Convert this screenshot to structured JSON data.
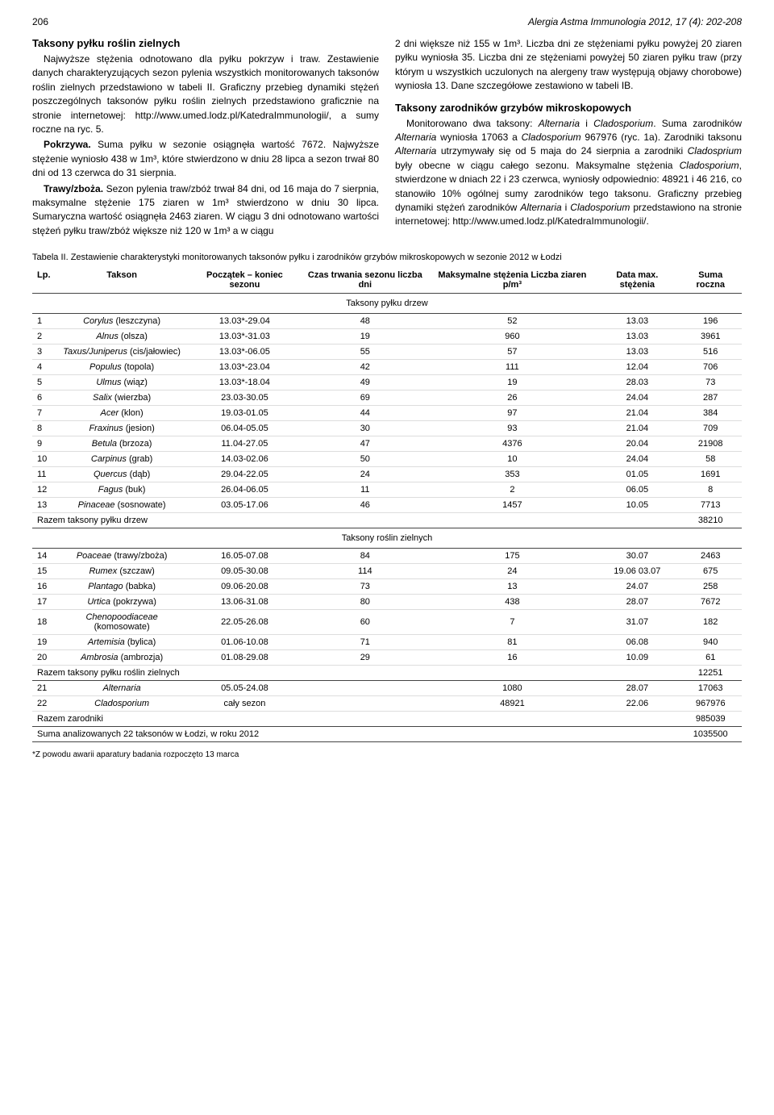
{
  "header": {
    "page_number": "206",
    "journal": "Alergia Astma Immunologia 2012, 17 (4): 202-208"
  },
  "left_column": {
    "section_title": "Taksony pyłku roślin zielnych",
    "p1": "Najwyższe stężenia odnotowano dla pyłku pokrzyw i traw. Zestawienie danych charakteryzujących sezon pylenia wszystkich monitorowanych taksonów roślin zielnych przedstawiono w tabeli II. Graficzny przebieg dynamiki stężeń poszczególnych taksonów pyłku roślin zielnych przedstawiono graficznie na stronie internetowej: http://www.umed.lodz.pl/KatedraImmunologii/, a sumy roczne na ryc. 5.",
    "p2_bold": "Pokrzywa.",
    "p2": " Suma pyłku w sezonie osiągnęła wartość 7672. Najwyższe stężenie wyniosło 438 w 1m³, które stwierdzono w dniu 28 lipca a sezon trwał 80 dni od 13 czerwca do 31 sierpnia.",
    "p3_bold": "Trawy/zboża.",
    "p3": " Sezon pylenia traw/zbóż trwał 84 dni, od 16 maja do 7 sierpnia, maksymalne stężenie 175 ziaren w 1m³ stwierdzono w dniu 30 lipca. Sumaryczna wartość osiągnęła 2463 ziaren. W ciągu 3 dni odnotowano wartości stężeń pyłku traw/zbóż większe niż 120 w 1m³ a w ciągu"
  },
  "right_column": {
    "p1": "2 dni większe niż 155 w 1m³. Liczba dni ze stężeniami pyłku powyżej 20 ziaren pyłku wyniosła 35. Liczba dni ze stężeniami powyżej 50 ziaren pyłku traw (przy którym u wszystkich uczulonych na alergeny traw występują objawy chorobowe) wyniosła 13. Dane szczegółowe zestawiono w tabeli IB.",
    "section_title": "Taksony zarodników grzybów mikroskopowych",
    "p2a": "Monitorowano dwa taksony: ",
    "p2_it1": "Alternaria",
    "p2b": " i ",
    "p2_it2": "Cladosporium",
    "p2c": ". Suma zarodników ",
    "p2_it3": "Alternaria",
    "p2d": " wyniosła 17063 a ",
    "p2_it4": "Cladosporium",
    "p2e": " 967976 (ryc. 1a). Zarodniki taksonu ",
    "p2_it5": "Alternaria",
    "p2f": " utrzymywały się od 5 maja do 24 sierpnia a zarodniki ",
    "p2_it6": "Cladosprium",
    "p2g": " były obecne w ciągu całego sezonu. Maksymalne stężenia ",
    "p2_it7": "Cladosporium",
    "p2h": ", stwierdzone w dniach 22 i 23 czerwca, wyniosły odpowiednio: 48921 i 46 216, co stanowiło 10% ogólnej sumy zarodników tego taksonu. Graficzny przebieg dynamiki stężeń zarodników ",
    "p2_it8": "Alternaria",
    "p2i": " i ",
    "p2_it9": "Cladosporium",
    "p2j": " przedstawiono na stronie internetowej: http://www.umed.lodz.pl/KatedraImmunologii/."
  },
  "table": {
    "caption": "Tabela II. Zestawienie charakterystyki monitorowanych taksonów pyłku i zarodników grzybów mikroskopowych w sezonie 2012 w Łodzi",
    "headers": {
      "lp": "Lp.",
      "takson": "Takson",
      "poczatek": "Początek – koniec sezonu",
      "czas": "Czas trwania sezonu liczba dni",
      "max": "Maksymalne stężenia Liczba ziaren p/m³",
      "data": "Data max. stężenia",
      "suma": "Suma roczna"
    },
    "section1": "Taksony pyłku drzew",
    "rows1": [
      {
        "lp": "1",
        "name_it": "Corylus",
        "name_rest": " (leszczyna)",
        "start": "13.03*-29.04",
        "dni": "48",
        "max": "52",
        "data": "13.03",
        "suma": "196"
      },
      {
        "lp": "2",
        "name_it": "Alnus",
        "name_rest": " (olsza)",
        "start": "13.03*-31.03",
        "dni": "19",
        "max": "960",
        "data": "13.03",
        "suma": "3961"
      },
      {
        "lp": "3",
        "name_it": "Taxus/Juniperus",
        "name_rest": " (cis/jałowiec)",
        "start": "13.03*-06.05",
        "dni": "55",
        "max": "57",
        "data": "13.03",
        "suma": "516"
      },
      {
        "lp": "4",
        "name_it": "Populus",
        "name_rest": " (topola)",
        "start": "13.03*-23.04",
        "dni": "42",
        "max": "111",
        "data": "12.04",
        "suma": "706"
      },
      {
        "lp": "5",
        "name_it": "Ulmus",
        "name_rest": " (wiąz)",
        "start": "13.03*-18.04",
        "dni": "49",
        "max": "19",
        "data": "28.03",
        "suma": "73"
      },
      {
        "lp": "6",
        "name_it": "Salix",
        "name_rest": " (wierzba)",
        "start": "23.03-30.05",
        "dni": "69",
        "max": "26",
        "data": "24.04",
        "suma": "287"
      },
      {
        "lp": "7",
        "name_it": "Acer",
        "name_rest": " (klon)",
        "start": "19.03-01.05",
        "dni": "44",
        "max": "97",
        "data": "21.04",
        "suma": "384"
      },
      {
        "lp": "8",
        "name_it": "Fraxinus",
        "name_rest": " (jesion)",
        "start": "06.04-05.05",
        "dni": "30",
        "max": "93",
        "data": "21.04",
        "suma": "709"
      },
      {
        "lp": "9",
        "name_it": "Betula",
        "name_rest": " (brzoza)",
        "start": "11.04-27.05",
        "dni": "47",
        "max": "4376",
        "data": "20.04",
        "suma": "21908"
      },
      {
        "lp": "10",
        "name_it": "Carpinus",
        "name_rest": " (grab)",
        "start": "14.03-02.06",
        "dni": "50",
        "max": "10",
        "data": "24.04",
        "suma": "58"
      },
      {
        "lp": "11",
        "name_it": "Quercus",
        "name_rest": " (dąb)",
        "start": "29.04-22.05",
        "dni": "24",
        "max": "353",
        "data": "01.05",
        "suma": "1691"
      },
      {
        "lp": "12",
        "name_it": "Fagus",
        "name_rest": " (buk)",
        "start": "26.04-06.05",
        "dni": "11",
        "max": "2",
        "data": "06.05",
        "suma": "8"
      },
      {
        "lp": "13",
        "name_it": "Pinaceae",
        "name_rest": " (sosnowate)",
        "start": "03.05-17.06",
        "dni": "46",
        "max": "1457",
        "data": "10.05",
        "suma": "7713"
      }
    ],
    "sum1_label": "Razem taksony pyłku drzew",
    "sum1_value": "38210",
    "section2": "Taksony roślin zielnych",
    "rows2": [
      {
        "lp": "14",
        "name_it": "Poaceae",
        "name_rest": " (trawy/zboża)",
        "start": "16.05-07.08",
        "dni": "84",
        "max": "175",
        "data": "30.07",
        "suma": "2463"
      },
      {
        "lp": "15",
        "name_it": "Rumex",
        "name_rest": " (szczaw)",
        "start": "09.05-30.08",
        "dni": "114",
        "max": "24",
        "data": "19.06 03.07",
        "suma": "675"
      },
      {
        "lp": "16",
        "name_it": "Plantago",
        "name_rest": " (babka)",
        "start": "09.06-20.08",
        "dni": "73",
        "max": "13",
        "data": "24.07",
        "suma": "258"
      },
      {
        "lp": "17",
        "name_it": "Urtica",
        "name_rest": " (pokrzywa)",
        "start": "13.06-31.08",
        "dni": "80",
        "max": "438",
        "data": "28.07",
        "suma": "7672"
      },
      {
        "lp": "18",
        "name_it": "Chenopoodiaceae",
        "name_rest": " (komosowate)",
        "start": "22.05-26.08",
        "dni": "60",
        "max": "7",
        "data": "31.07",
        "suma": "182"
      },
      {
        "lp": "19",
        "name_it": "Artemisia",
        "name_rest": " (bylica)",
        "start": "01.06-10.08",
        "dni": "71",
        "max": "81",
        "data": "06.08",
        "suma": "940"
      },
      {
        "lp": "20",
        "name_it": "Ambrosia",
        "name_rest": " (ambrozja)",
        "start": "01.08-29.08",
        "dni": "29",
        "max": "16",
        "data": "10.09",
        "suma": "61"
      }
    ],
    "sum2_label": "Razem taksony pyłku roślin zielnych",
    "sum2_value": "12251",
    "rows3": [
      {
        "lp": "21",
        "name_it": "Alternaria",
        "name_rest": "",
        "start": "05.05-24.08",
        "dni": "",
        "max": "1080",
        "data": "28.07",
        "suma": "17063"
      },
      {
        "lp": "22",
        "name_it": "Cladosporium",
        "name_rest": "",
        "start": "cały sezon",
        "dni": "",
        "max": "48921",
        "data": "22.06",
        "suma": "967976"
      }
    ],
    "sum3_label": "Razem zarodniki",
    "sum3_value": "985039",
    "sum4_label": "Suma analizowanych 22 taksonów w Łodzi, w roku 2012",
    "sum4_value": "1035500",
    "footnote": "*Z powodu awarii aparatury badania rozpoczęto 13 marca"
  }
}
